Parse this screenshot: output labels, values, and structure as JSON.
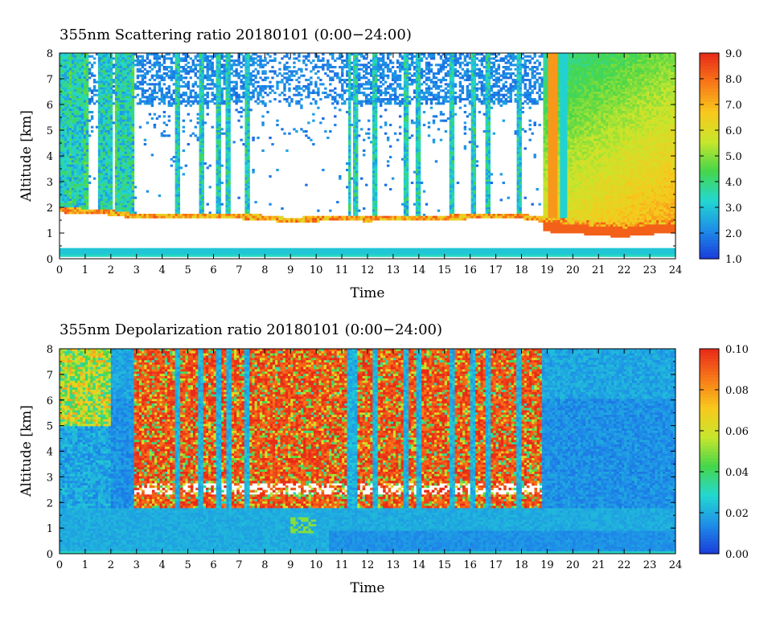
{
  "chart_data": [
    {
      "type": "heatmap",
      "title": "355nm Scattering ratio  20180101 (0:00−24:00)",
      "xlabel": "Time",
      "ylabel": "Altitude [km]",
      "xlim": [
        0,
        24
      ],
      "ylim": [
        0,
        8
      ],
      "x_ticks": [
        0,
        1,
        2,
        3,
        4,
        5,
        6,
        7,
        8,
        9,
        10,
        11,
        12,
        13,
        14,
        15,
        16,
        17,
        18,
        19,
        20,
        21,
        22,
        23,
        24
      ],
      "y_ticks": [
        0,
        1,
        2,
        3,
        4,
        5,
        6,
        7,
        8
      ],
      "colorbar": {
        "range": [
          1.0,
          9.0
        ],
        "ticks": [
          "1.0",
          "2.0",
          "3.0",
          "4.0",
          "5.0",
          "6.0",
          "7.0",
          "8.0",
          "9.0"
        ]
      },
      "colormap": [
        "#1a3cdc",
        "#1e8ee8",
        "#22d8d0",
        "#46d64a",
        "#c8e62c",
        "#f8c81c",
        "#f87818",
        "#e82a18"
      ],
      "features": {
        "cloud_base_km": [
          [
            0.0,
            1.95
          ],
          [
            1.0,
            1.9
          ],
          [
            2.0,
            1.85
          ],
          [
            3.0,
            1.7
          ],
          [
            4.0,
            1.7
          ],
          [
            5.0,
            1.7
          ],
          [
            6.0,
            1.7
          ],
          [
            7.0,
            1.7
          ],
          [
            8.0,
            1.65
          ],
          [
            9.0,
            1.55
          ],
          [
            10.0,
            1.6
          ],
          [
            11.0,
            1.65
          ],
          [
            12.0,
            1.6
          ],
          [
            13.0,
            1.65
          ],
          [
            14.0,
            1.65
          ],
          [
            15.0,
            1.65
          ],
          [
            16.0,
            1.7
          ],
          [
            17.0,
            1.7
          ],
          [
            18.0,
            1.7
          ],
          [
            19.0,
            1.55
          ],
          [
            20.0,
            1.5
          ],
          [
            21.0,
            1.4
          ],
          [
            22.0,
            1.35
          ],
          [
            23.0,
            1.45
          ],
          [
            24.0,
            1.5
          ]
        ],
        "near_surface_layer_km": [
          0.2,
          0.45
        ],
        "cloud_shaft_times_h": [
          0.7,
          1.8,
          2.5,
          4.6,
          5.5,
          6.2,
          6.6,
          7.3,
          11.3,
          11.5,
          12.3,
          13.5,
          14.0,
          15.3,
          16.1,
          16.7,
          17.9,
          19.6
        ],
        "aerosol_layer_time_h": [
          18.8,
          24.0
        ],
        "aerosol_layer_value": 5.8
      }
    },
    {
      "type": "heatmap",
      "title": "355nm Depolarization ratio  20180101 (0:00−24:00)",
      "xlabel": "Time",
      "ylabel": "Altitude [km]",
      "xlim": [
        0,
        24
      ],
      "ylim": [
        0,
        8
      ],
      "x_ticks": [
        0,
        1,
        2,
        3,
        4,
        5,
        6,
        7,
        8,
        9,
        10,
        11,
        12,
        13,
        14,
        15,
        16,
        17,
        18,
        19,
        20,
        21,
        22,
        23,
        24
      ],
      "y_ticks": [
        0,
        1,
        2,
        3,
        4,
        5,
        6,
        7,
        8
      ],
      "colorbar": {
        "range": [
          0.0,
          0.1
        ],
        "ticks": [
          "0.00",
          "0.02",
          "0.04",
          "0.06",
          "0.08",
          "0.10"
        ]
      },
      "colormap": [
        "#1a3cdc",
        "#1e8ee8",
        "#22d8d0",
        "#46d64a",
        "#c8e62c",
        "#f8c81c",
        "#f87818",
        "#e82a18"
      ],
      "features": {
        "boundary_layer_top_km": 1.8,
        "boundary_layer_value": 0.02,
        "noisy_region_time_h": [
          2.9,
          18.8
        ],
        "noisy_region_value": 0.09,
        "clear_region_time_h": [
          18.8,
          24.0
        ],
        "clear_region_value": 0.015
      }
    }
  ]
}
